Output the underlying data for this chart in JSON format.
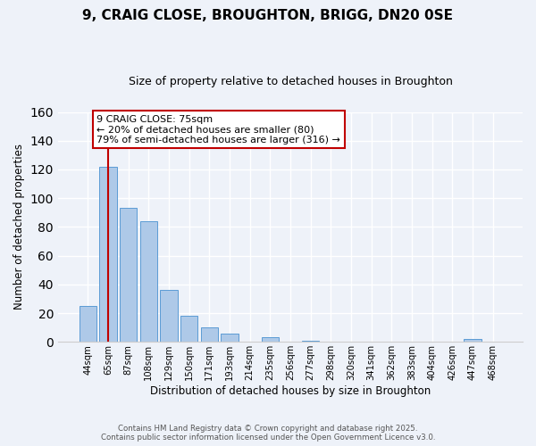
{
  "title1": "9, CRAIG CLOSE, BROUGHTON, BRIGG, DN20 0SE",
  "title2": "Size of property relative to detached houses in Broughton",
  "xlabel": "Distribution of detached houses by size in Broughton",
  "ylabel": "Number of detached properties",
  "categories": [
    "44sqm",
    "65sqm",
    "87sqm",
    "108sqm",
    "129sqm",
    "150sqm",
    "171sqm",
    "193sqm",
    "214sqm",
    "235sqm",
    "256sqm",
    "277sqm",
    "298sqm",
    "320sqm",
    "341sqm",
    "362sqm",
    "383sqm",
    "404sqm",
    "426sqm",
    "447sqm",
    "468sqm"
  ],
  "values": [
    25,
    122,
    93,
    84,
    36,
    18,
    10,
    6,
    0,
    3,
    0,
    1,
    0,
    0,
    0,
    0,
    0,
    0,
    0,
    2,
    0
  ],
  "bar_color": "#aec9e8",
  "bar_edge_color": "#5b9bd5",
  "vline_x": 1.0,
  "vline_color": "#c00000",
  "annotation_title": "9 CRAIG CLOSE: 75sqm",
  "annotation_line1": "← 20% of detached houses are smaller (80)",
  "annotation_line2": "79% of semi-detached houses are larger (316) →",
  "annotation_box_color": "#ffffff",
  "annotation_box_edge": "#c00000",
  "ylim": [
    0,
    160
  ],
  "yticks": [
    0,
    20,
    40,
    60,
    80,
    100,
    120,
    140,
    160
  ],
  "footer1": "Contains HM Land Registry data © Crown copyright and database right 2025.",
  "footer2": "Contains public sector information licensed under the Open Government Licence v3.0.",
  "bg_color": "#eef2f9",
  "grid_color": "#ffffff",
  "title1_fontsize": 11,
  "title2_fontsize": 9
}
